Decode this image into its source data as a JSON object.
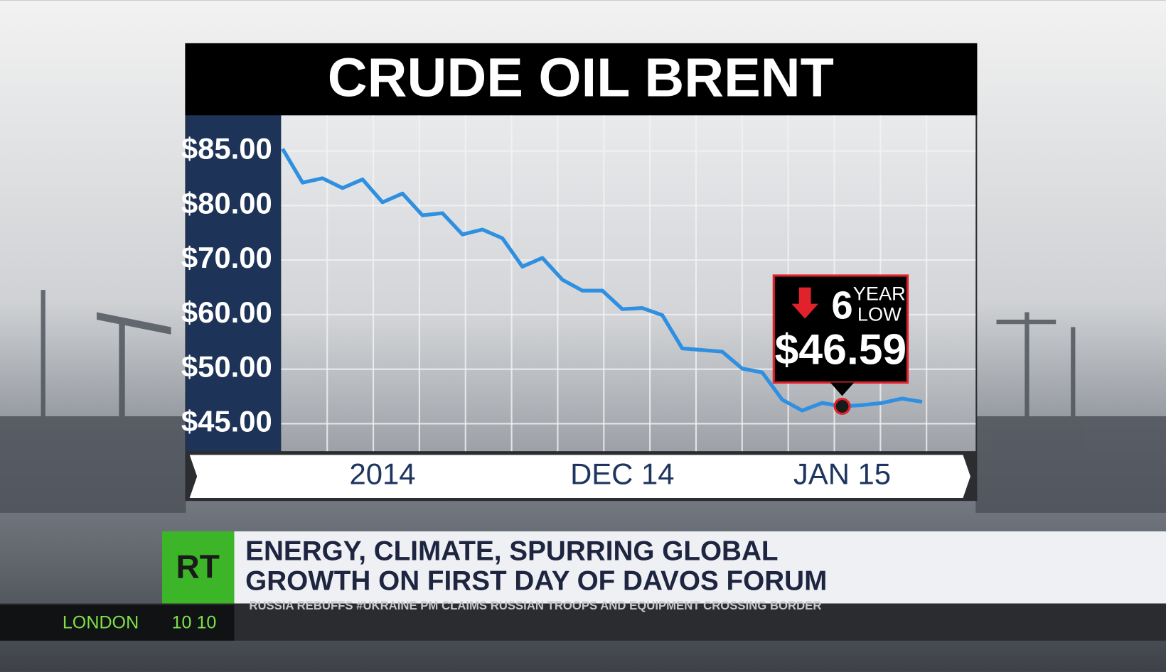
{
  "chart_data": {
    "type": "line",
    "title": "CRUDE OIL BRENT",
    "categories": [
      null,
      null,
      null,
      null,
      null,
      "2014",
      null,
      null,
      null,
      null,
      null,
      null,
      null,
      null,
      null,
      null,
      null,
      "DEC 14",
      null,
      null,
      null,
      null,
      null,
      null,
      null,
      null,
      null,
      null,
      "JAN 15",
      null,
      null,
      null,
      null
    ],
    "series": [
      {
        "name": "Crude Oil Brent",
        "color": "#2f8fe0",
        "values": [
          85.2,
          82.1,
          82.5,
          81.6,
          82.4,
          80.3,
          81.1,
          78.2,
          78.6,
          74.7,
          75.6,
          74.0,
          68.8,
          70.4,
          66.4,
          64.4,
          64.4,
          61.0,
          61.2,
          59.9,
          53.8,
          53.5,
          53.2,
          50.1,
          49.7,
          47.2,
          46.2,
          46.9,
          46.59,
          46.7,
          46.9,
          47.3,
          47.0
        ],
        "value_labels": [
          null,
          null,
          null,
          null,
          null,
          null,
          null,
          null,
          null,
          null,
          null,
          null,
          null,
          null,
          null,
          null,
          null,
          null,
          null,
          null,
          null,
          null,
          null,
          null,
          null,
          null,
          null,
          null,
          "$46.59",
          null,
          null,
          null,
          null
        ]
      }
    ],
    "ylim": [
      42.5,
      88.3
    ],
    "yticks": [
      {
        "value": 85,
        "label": "$85.00"
      },
      {
        "value": 80,
        "label": "$80.00"
      },
      {
        "value": 70,
        "label": "$70.00"
      },
      {
        "value": 60,
        "label": "$60.00"
      },
      {
        "value": 50,
        "label": "$50.00"
      },
      {
        "value": 45,
        "label": "$45.00"
      }
    ],
    "grid": true,
    "annotation": {
      "number": "6",
      "text": [
        "YEAR",
        "LOW"
      ]
    }
  },
  "banner": {
    "logo": "RT",
    "headline": [
      "ENERGY, CLIMATE, SPURRING GLOBAL",
      "GROWTH ON FIRST DAY OF DAVOS FORUM"
    ],
    "crawl": "RUSSIA REBUFFS #UKRAINE PM CLAIMS RUSSIAN TROOPS AND EQUIPMENT CROSSING BORDER",
    "location": "LONDON",
    "time": "10 10"
  }
}
